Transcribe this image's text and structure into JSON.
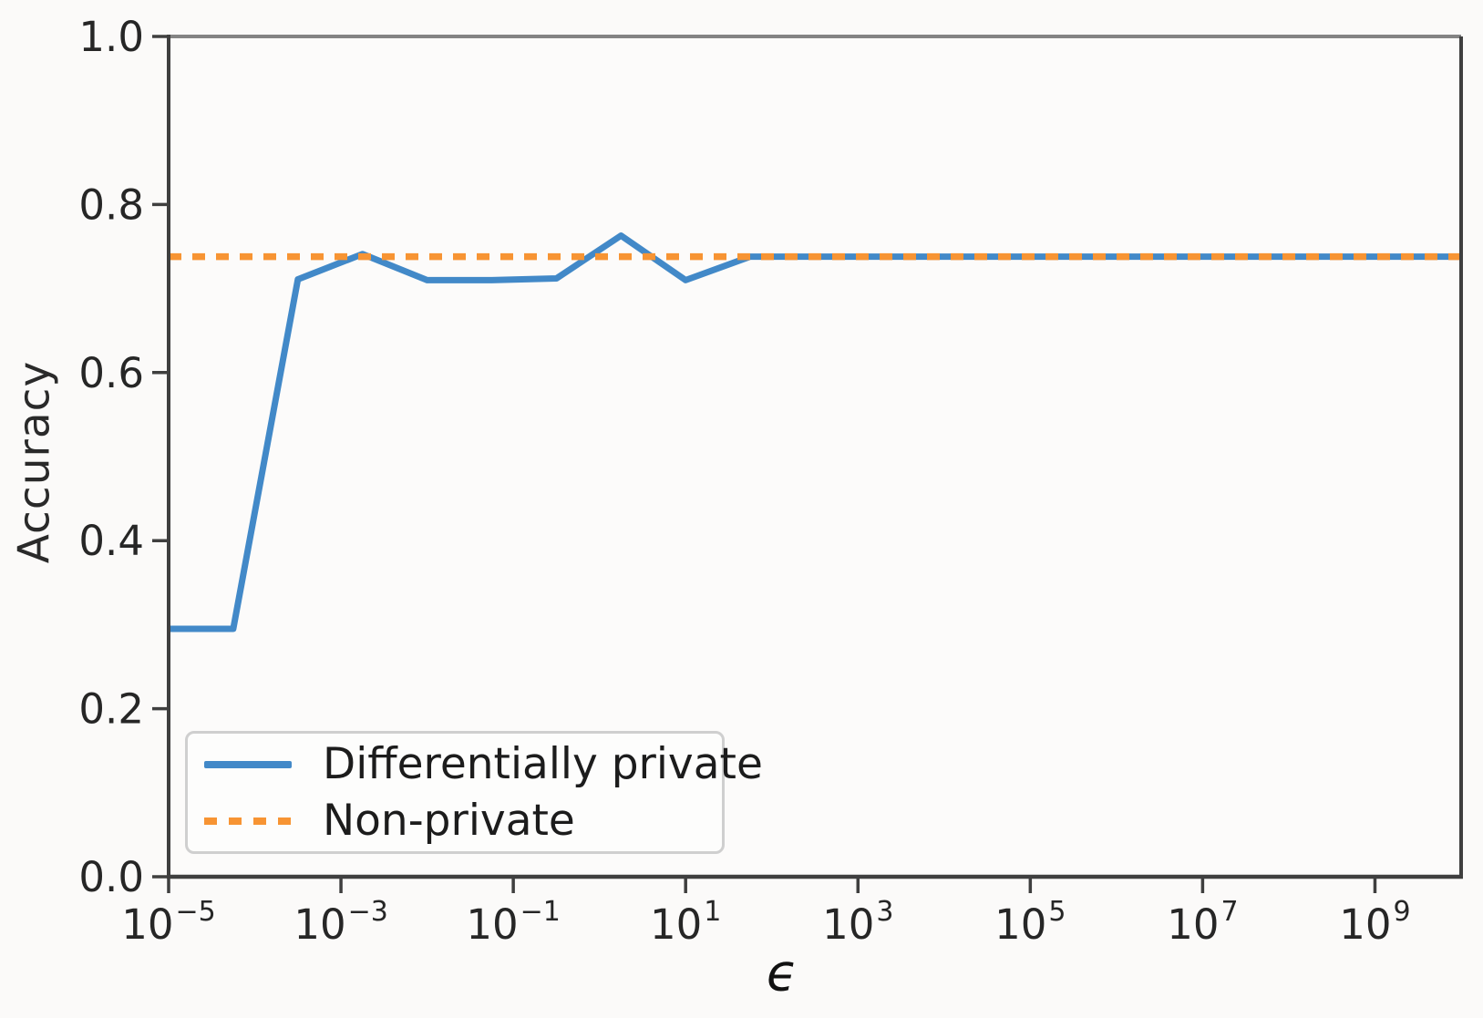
{
  "chart_data": {
    "type": "line",
    "title": "",
    "xlabel": "ϵ",
    "ylabel": "Accuracy",
    "x_scale": "log",
    "xlim_log10": [
      -5,
      10
    ],
    "ylim": [
      0.0,
      1.0
    ],
    "x_ticks_log10": [
      -5,
      -3,
      -1,
      1,
      3,
      5,
      7,
      9
    ],
    "y_ticks": [
      "0.0",
      "0.2",
      "0.4",
      "0.6",
      "0.8",
      "1.0"
    ],
    "grid": false,
    "legend_position": "lower left",
    "series": [
      {
        "name": "Differentially private",
        "color": "#4289c8",
        "style": "solid",
        "x_log10": [
          -5,
          -4.25,
          -3.5,
          -2.75,
          -2,
          -1.25,
          -0.5,
          0.25,
          1,
          1.75,
          2.5,
          3.25,
          4,
          4.75,
          5.5,
          6.25,
          7,
          7.75,
          8.5,
          9.25,
          10
        ],
        "y": [
          0.295,
          0.295,
          0.711,
          0.741,
          0.71,
          0.71,
          0.712,
          0.763,
          0.71,
          0.738,
          0.738,
          0.738,
          0.738,
          0.738,
          0.738,
          0.738,
          0.738,
          0.738,
          0.738,
          0.738,
          0.738
        ]
      },
      {
        "name": "Non-private",
        "color": "#f79433",
        "style": "dotted",
        "x_log10": [
          -5,
          10
        ],
        "y": [
          0.738,
          0.738
        ]
      }
    ]
  },
  "colors": {
    "spine_dark": "#3f3f3f",
    "spine_top": "#848484",
    "tick_text": "#262626",
    "plot_bg": "#fcfbfa"
  }
}
